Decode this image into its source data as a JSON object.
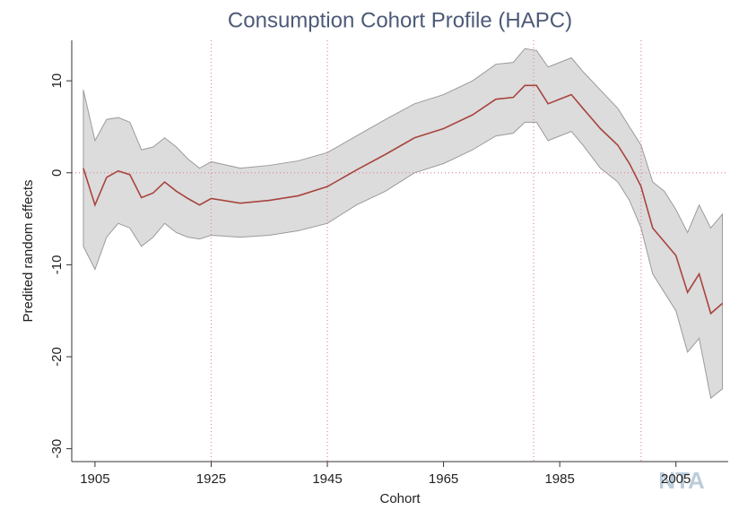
{
  "chart_data": {
    "type": "line",
    "title": "Consumption Cohort Profile (HAPC)",
    "x_label": "Cohort",
    "y_label": "Predited random effects",
    "watermark": "NTA",
    "x": [
      1903,
      1905,
      1907,
      1909,
      1911,
      1913,
      1915,
      1917,
      1919,
      1921,
      1923,
      1925,
      1930,
      1935,
      1940,
      1945,
      1950,
      1955,
      1960,
      1965,
      1970,
      1974,
      1977,
      1979,
      1981,
      1983,
      1985,
      1987,
      1989,
      1992,
      1995,
      1997,
      1999,
      2001,
      2003,
      2005,
      2007,
      2009,
      2011,
      2013
    ],
    "series": [
      {
        "color": "#a8443e",
        "band_color": "#dcdcdc",
        "values": [
          0.5,
          -3.5,
          -0.5,
          0.2,
          -0.2,
          -2.7,
          -2.2,
          -1,
          -2,
          -2.8,
          -3.5,
          -2.8,
          -3.3,
          -3,
          -2.5,
          -1.5,
          0.3,
          2,
          3.8,
          4.8,
          6.3,
          8,
          8.2,
          9.5,
          9.5,
          7.5,
          8,
          8.5,
          7,
          4.8,
          3,
          1,
          -1.5,
          -6,
          -7.5,
          -9,
          -13,
          -11,
          -15.3,
          -14.2
        ],
        "upper": [
          9,
          3.5,
          5.8,
          6,
          5.5,
          2.5,
          2.8,
          3.8,
          2.8,
          1.5,
          0.5,
          1.2,
          0.5,
          0.8,
          1.3,
          2.2,
          4,
          5.8,
          7.5,
          8.5,
          10,
          11.8,
          12,
          13.5,
          13.3,
          11.5,
          12,
          12.5,
          11,
          9,
          7,
          5,
          3,
          -1,
          -2,
          -4,
          -6.5,
          -3.5,
          -6,
          -4.5
        ],
        "lower": [
          -8,
          -10.5,
          -7,
          -5.5,
          -6,
          -8,
          -7,
          -5.5,
          -6.5,
          -7,
          -7.2,
          -6.8,
          -7,
          -6.8,
          -6.3,
          -5.5,
          -3.5,
          -2,
          0,
          1,
          2.5,
          4,
          4.3,
          5.5,
          5.5,
          3.5,
          4,
          4.5,
          3,
          0.5,
          -1,
          -3,
          -6,
          -11,
          -13,
          -15,
          -19.5,
          -18,
          -24.5,
          -23.5
        ]
      }
    ],
    "xlim": [
      1901,
      2014
    ],
    "ylim": [
      -31.4,
      14.4
    ],
    "xticks": [
      1905,
      1925,
      1945,
      1965,
      1985,
      2005
    ],
    "yticks": [
      -30,
      -20,
      -10,
      0,
      10
    ],
    "reference_x": [
      1925,
      1945,
      1980.5,
      1999
    ],
    "reference_y": [
      0
    ],
    "reference_color": "#e08a9a"
  }
}
